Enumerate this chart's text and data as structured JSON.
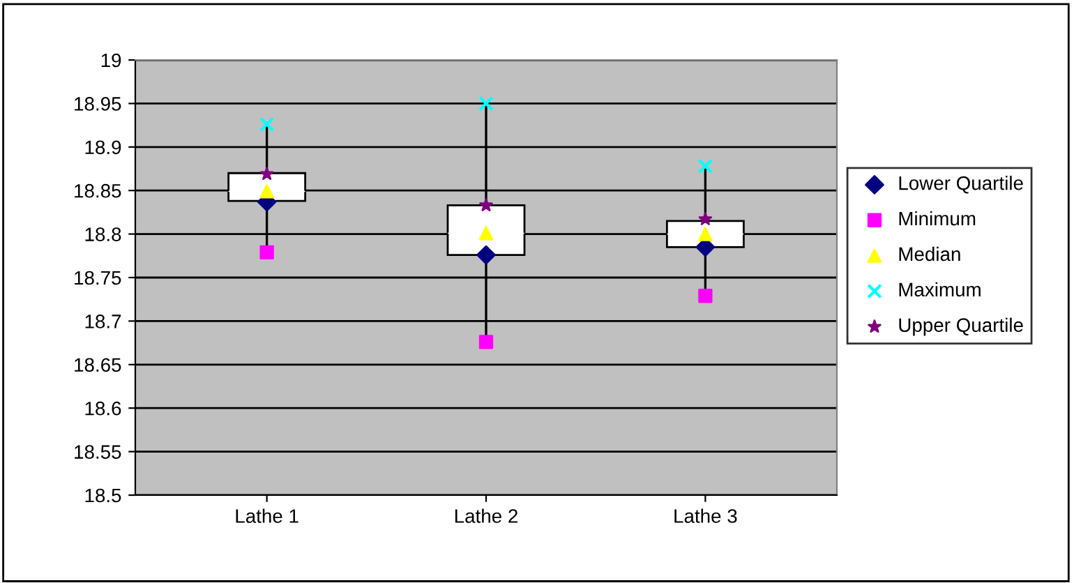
{
  "chart_data": {
    "type": "box",
    "categories": [
      "Lathe 1",
      "Lathe 2",
      "Lathe 3"
    ],
    "boxes": [
      {
        "low": 18.779,
        "q1": 18.838,
        "median": 18.849,
        "q3": 18.87,
        "high": 18.926
      },
      {
        "low": 18.676,
        "q1": 18.776,
        "median": 18.801,
        "q3": 18.833,
        "high": 18.95
      },
      {
        "low": 18.729,
        "q1": 18.785,
        "median": 18.8,
        "q3": 18.815,
        "high": 18.878
      }
    ],
    "series": [
      {
        "name": "Lower Quartile",
        "type": "scatter",
        "marker": "diamond",
        "color": "#000080",
        "values": [
          18.837,
          18.776,
          18.785
        ]
      },
      {
        "name": "Minimum",
        "type": "scatter",
        "marker": "square",
        "color": "#ff00ff",
        "values": [
          18.779,
          18.676,
          18.729
        ]
      },
      {
        "name": "Median",
        "type": "scatter",
        "marker": "triangle",
        "color": "#ffff00",
        "values": [
          18.849,
          18.801,
          18.8
        ]
      },
      {
        "name": "Maximum",
        "type": "scatter",
        "marker": "cross",
        "color": "#00ffff",
        "values": [
          18.926,
          18.95,
          18.878
        ]
      },
      {
        "name": "Upper Quartile",
        "type": "scatter",
        "marker": "star",
        "color": "#800080",
        "values": [
          18.869,
          18.833,
          18.817
        ]
      }
    ],
    "ylim": [
      18.5,
      19
    ],
    "yticks": [
      18.5,
      18.55,
      18.6,
      18.65,
      18.7,
      18.75,
      18.8,
      18.85,
      18.9,
      18.95,
      19
    ],
    "grid": "y",
    "legend": "right"
  }
}
